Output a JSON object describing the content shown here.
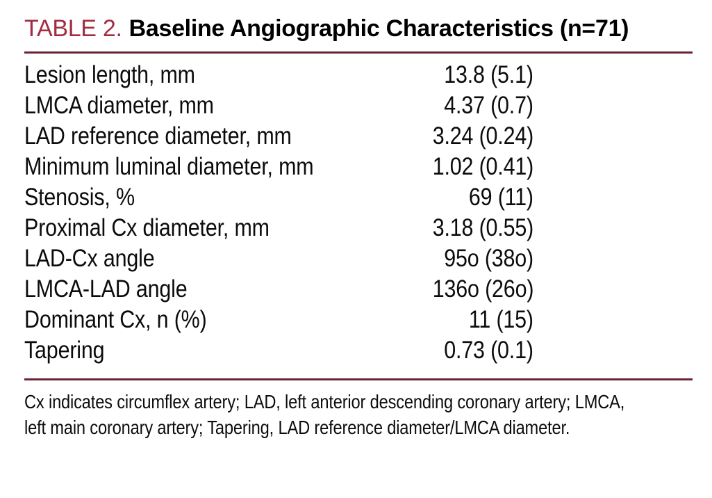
{
  "colors": {
    "accent_label": "#a22c42",
    "rule": "#6b2435",
    "text": "#0c0c0c",
    "background": "#ffffff"
  },
  "header": {
    "table_label": "TABLE 2.",
    "table_title": "Baseline Angiographic Characteristics (n=71)"
  },
  "table": {
    "rows": [
      {
        "label": "Lesion length, mm",
        "value": "13.8 (5.1)"
      },
      {
        "label": "LMCA diameter, mm",
        "value": "4.37 (0.7)"
      },
      {
        "label": "LAD reference diameter, mm",
        "value": "3.24 (0.24)"
      },
      {
        "label": "Minimum luminal diameter, mm",
        "value": "1.02 (0.41)"
      },
      {
        "label": "Stenosis, %",
        "value": "69 (11)"
      },
      {
        "label": "Proximal Cx diameter, mm",
        "value": "3.18 (0.55)"
      },
      {
        "label": "LAD-Cx angle",
        "value": "95o (38o)"
      },
      {
        "label": "LMCA-LAD angle",
        "value": "136o (26o)"
      },
      {
        "label": "Dominant Cx, n (%)",
        "value": "11 (15)"
      },
      {
        "label": "Tapering",
        "value": "0.73 (0.1)"
      }
    ]
  },
  "footnote": {
    "full_text": "Cx indicates circumflex artery; LAD, left anterior descending coronary artery; LMCA, left main coronary artery; Tapering, LAD reference diameter/LMCA diameter.",
    "lines": [
      "Cx indicates circumflex artery; LAD, left anterior descending coronary artery; LMCA,",
      "left main coronary artery; Tapering, LAD reference diameter/LMCA diameter."
    ]
  }
}
